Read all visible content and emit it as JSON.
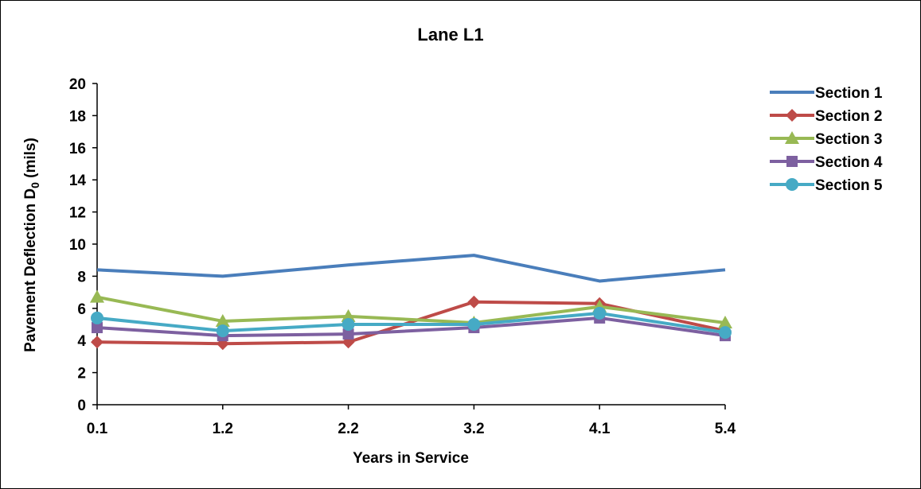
{
  "chart_data": {
    "type": "line",
    "title": "Lane L1",
    "xlabel": "Years in Service",
    "ylabel_main": "Pavement Deflection D",
    "ylabel_sub": "0",
    "ylabel_unit": " (mils)",
    "categories": [
      "0.1",
      "1.2",
      "2.2",
      "3.2",
      "4.1",
      "5.4"
    ],
    "ylim": [
      0,
      20
    ],
    "yticks": [
      "0",
      "2",
      "4",
      "6",
      "8",
      "10",
      "12",
      "14",
      "16",
      "18",
      "20"
    ],
    "grid": false,
    "legend_position": "right",
    "series": [
      {
        "name": "Section 1",
        "color": "#4a7ebb",
        "marker": "none",
        "values": [
          8.4,
          8.0,
          8.7,
          9.3,
          7.7,
          8.4
        ]
      },
      {
        "name": "Section 2",
        "color": "#be4b48",
        "marker": "diamond",
        "values": [
          3.9,
          3.8,
          3.9,
          6.4,
          6.3,
          4.6
        ]
      },
      {
        "name": "Section 3",
        "color": "#98b954",
        "marker": "triangle",
        "values": [
          6.7,
          5.2,
          5.5,
          5.1,
          6.1,
          5.1
        ]
      },
      {
        "name": "Section 4",
        "color": "#7d60a0",
        "marker": "square",
        "values": [
          4.8,
          4.3,
          4.4,
          4.8,
          5.4,
          4.3
        ]
      },
      {
        "name": "Section 5",
        "color": "#46aac5",
        "marker": "circle",
        "values": [
          5.4,
          4.6,
          5.0,
          5.0,
          5.7,
          4.5
        ]
      }
    ]
  }
}
